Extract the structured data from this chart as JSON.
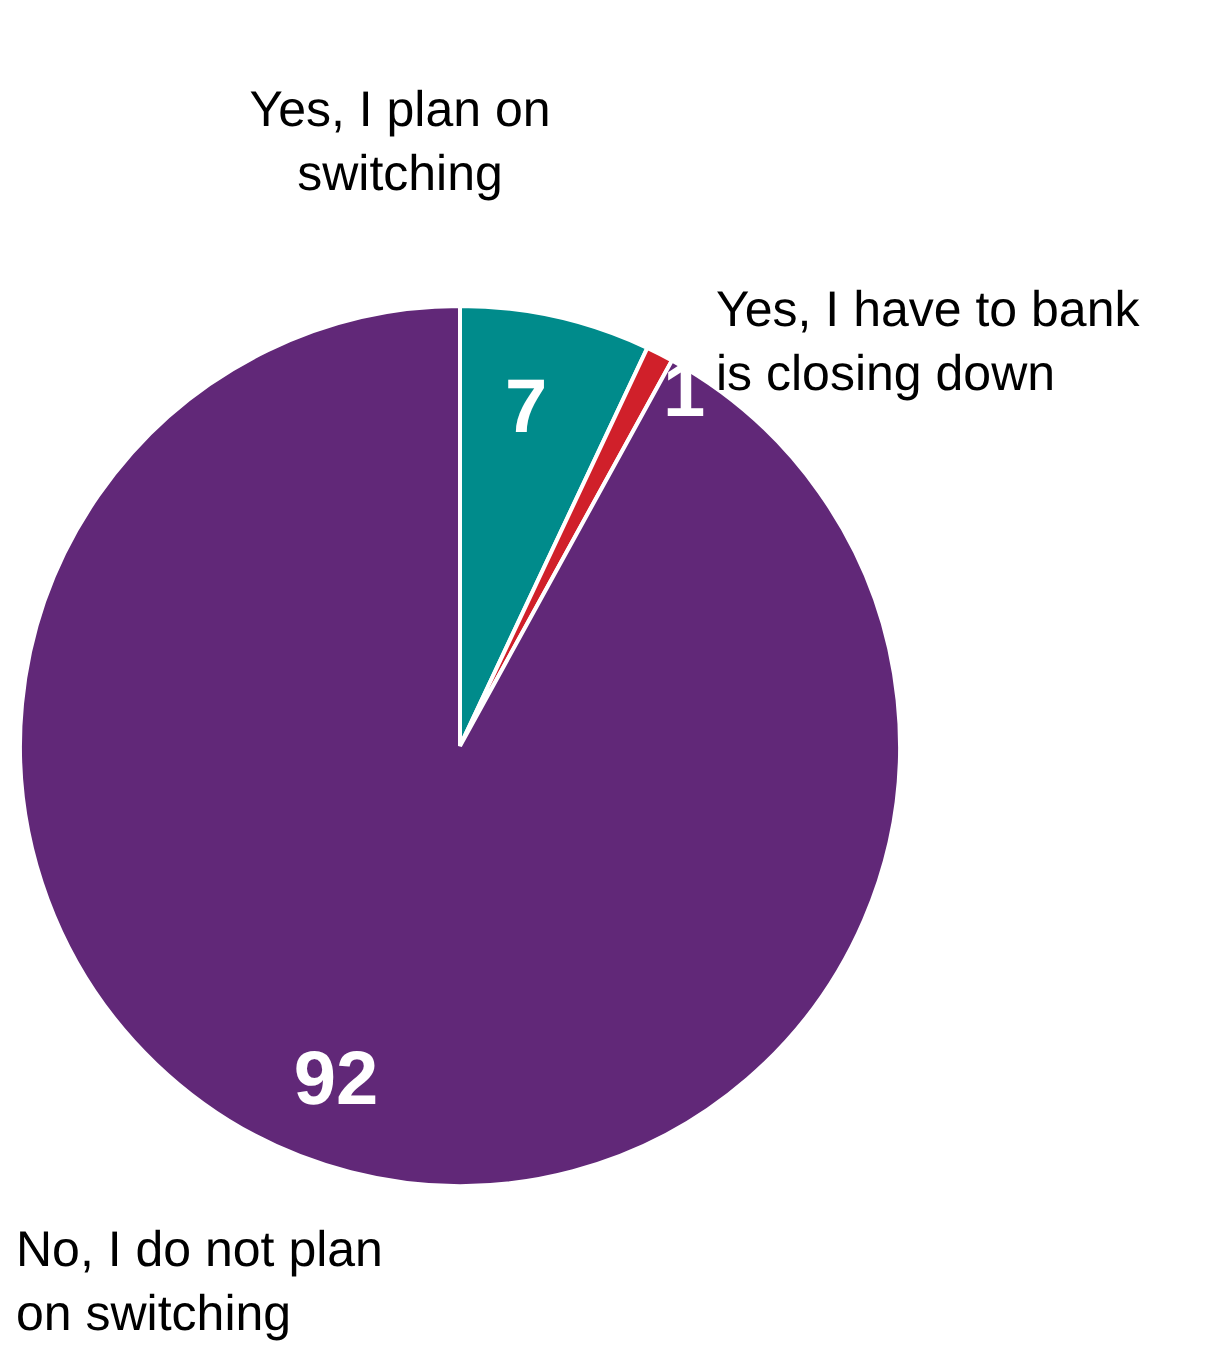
{
  "chart_data": {
    "type": "pie",
    "categories": [
      "Yes, I plan on switching",
      "Yes, I have to bank is closing down",
      "No, I do not plan on switching"
    ],
    "values": [
      7,
      1,
      92
    ],
    "colors": [
      "#008b8b",
      "#d0202a",
      "#612878"
    ],
    "data_labels": true
  }
}
